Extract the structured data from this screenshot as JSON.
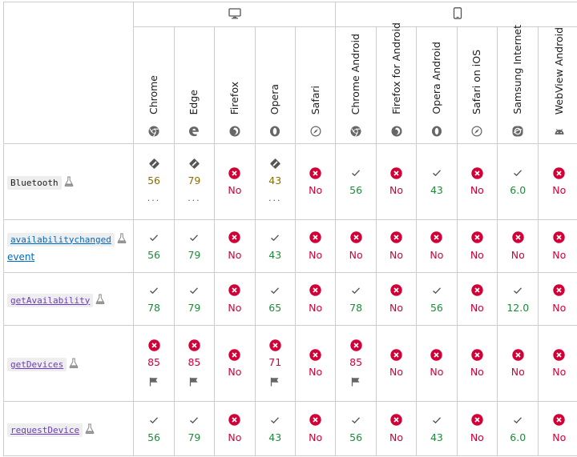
{
  "platforms": [
    {
      "name": "desktop",
      "icon": "desktop-icon"
    },
    {
      "name": "mobile",
      "icon": "mobile-icon"
    }
  ],
  "browsers": [
    {
      "name": "Chrome",
      "logo": "chrome-logo-icon"
    },
    {
      "name": "Edge",
      "logo": "edge-logo-icon"
    },
    {
      "name": "Firefox",
      "logo": "firefox-logo-icon"
    },
    {
      "name": "Opera",
      "logo": "opera-logo-icon"
    },
    {
      "name": "Safari",
      "logo": "safari-logo-icon"
    },
    {
      "name": "Chrome Android",
      "logo": "chrome-logo-icon"
    },
    {
      "name": "Firefox for Android",
      "logo": "firefox-logo-icon"
    },
    {
      "name": "Opera Android",
      "logo": "opera-logo-icon"
    },
    {
      "name": "Safari on iOS",
      "logo": "safari-logo-icon"
    },
    {
      "name": "Samsung Internet",
      "logo": "samsung-logo-icon"
    },
    {
      "name": "WebView Android",
      "logo": "android-logo-icon"
    }
  ],
  "features": [
    {
      "name": "Bluetooth",
      "style": "code",
      "cells": [
        {
          "status": "partial",
          "version": "56",
          "extra": "…"
        },
        {
          "status": "partial",
          "version": "79",
          "extra": "…"
        },
        {
          "status": "no",
          "version": "No"
        },
        {
          "status": "partial",
          "version": "43",
          "extra": "…"
        },
        {
          "status": "no",
          "version": "No"
        },
        {
          "status": "yes",
          "version": "56"
        },
        {
          "status": "no",
          "version": "No"
        },
        {
          "status": "yes",
          "version": "43"
        },
        {
          "status": "no",
          "version": "No"
        },
        {
          "status": "yes",
          "version": "6.0"
        },
        {
          "status": "no",
          "version": "No"
        }
      ]
    },
    {
      "name": "availabilitychanged",
      "suffix": "event",
      "style": "link-blue",
      "cells": [
        {
          "status": "yes",
          "version": "56"
        },
        {
          "status": "yes",
          "version": "79"
        },
        {
          "status": "no",
          "version": "No"
        },
        {
          "status": "yes",
          "version": "43"
        },
        {
          "status": "no",
          "version": "No"
        },
        {
          "status": "no",
          "version": "No"
        },
        {
          "status": "no",
          "version": "No"
        },
        {
          "status": "no",
          "version": "No"
        },
        {
          "status": "no",
          "version": "No"
        },
        {
          "status": "no",
          "version": "No"
        },
        {
          "status": "no",
          "version": "No"
        }
      ]
    },
    {
      "name": "getAvailability",
      "style": "link",
      "cells": [
        {
          "status": "yes",
          "version": "78"
        },
        {
          "status": "yes",
          "version": "79"
        },
        {
          "status": "no",
          "version": "No"
        },
        {
          "status": "yes",
          "version": "65"
        },
        {
          "status": "no",
          "version": "No"
        },
        {
          "status": "yes",
          "version": "78"
        },
        {
          "status": "no",
          "version": "No"
        },
        {
          "status": "yes",
          "version": "56"
        },
        {
          "status": "no",
          "version": "No"
        },
        {
          "status": "yes",
          "version": "12.0"
        },
        {
          "status": "no",
          "version": "No"
        }
      ]
    },
    {
      "name": "getDevices",
      "style": "link",
      "cells": [
        {
          "status": "exp",
          "version": "85",
          "extra": "flag"
        },
        {
          "status": "exp",
          "version": "85",
          "extra": "flag"
        },
        {
          "status": "no",
          "version": "No"
        },
        {
          "status": "exp",
          "version": "71",
          "extra": "flag"
        },
        {
          "status": "no",
          "version": "No"
        },
        {
          "status": "exp",
          "version": "85",
          "extra": "flag"
        },
        {
          "status": "no",
          "version": "No"
        },
        {
          "status": "no",
          "version": "No"
        },
        {
          "status": "no",
          "version": "No"
        },
        {
          "status": "no",
          "version": "No"
        },
        {
          "status": "no",
          "version": "No"
        }
      ]
    },
    {
      "name": "requestDevice",
      "style": "link",
      "cells": [
        {
          "status": "yes",
          "version": "56"
        },
        {
          "status": "yes",
          "version": "79"
        },
        {
          "status": "no",
          "version": "No"
        },
        {
          "status": "yes",
          "version": "43"
        },
        {
          "status": "no",
          "version": "No"
        },
        {
          "status": "yes",
          "version": "56"
        },
        {
          "status": "no",
          "version": "No"
        },
        {
          "status": "yes",
          "version": "43"
        },
        {
          "status": "no",
          "version": "No"
        },
        {
          "status": "yes",
          "version": "6.0"
        },
        {
          "status": "no",
          "version": "No"
        }
      ]
    }
  ],
  "colors": {
    "yes": "#1e8a3c",
    "no": "#d30038",
    "partial": "#8a6d00",
    "link": "#6a3bbd",
    "link_blue": "#0069c2",
    "border": "#cdcdcd"
  }
}
